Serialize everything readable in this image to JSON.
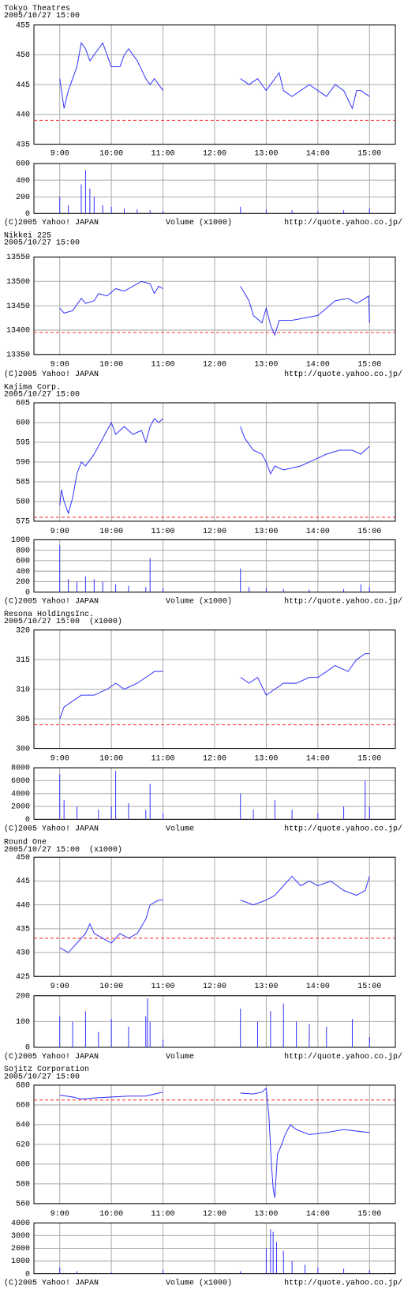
{
  "chart_data": [
    {
      "type": "line",
      "title": "Tokyo Theatres",
      "subtitle": "2005/10/27 15:00",
      "color": "#3333ff",
      "reference_color": "#ff3333",
      "grid": true,
      "x": [
        540,
        545,
        550,
        560,
        565,
        570,
        575,
        585,
        590,
        600,
        610,
        615,
        620,
        630,
        640,
        645,
        650,
        660,
        705,
        750,
        760,
        770,
        780,
        790,
        795,
        800,
        810,
        820,
        830,
        840,
        850,
        860,
        870,
        880,
        885,
        890,
        900
      ],
      "values": [
        446,
        441,
        444,
        448,
        452,
        451,
        449,
        451,
        452,
        448,
        448,
        450,
        451,
        449,
        446,
        445,
        446,
        444,
        null,
        446,
        445,
        446,
        444,
        446,
        447,
        444,
        443,
        444,
        445,
        444,
        443,
        445,
        444,
        441,
        444,
        444,
        443
      ],
      "reference_line": 439,
      "xlim": [
        510,
        930
      ],
      "xticks": [
        {
          "value": 540,
          "label": "9:00"
        },
        {
          "value": 600,
          "label": "10:00"
        },
        {
          "value": 660,
          "label": "11:00"
        },
        {
          "value": 720,
          "label": "12:00"
        },
        {
          "value": 780,
          "label": "13:00"
        },
        {
          "value": 840,
          "label": "14:00"
        },
        {
          "value": 900,
          "label": "15:00"
        }
      ],
      "ylim": [
        435,
        455
      ],
      "yticks": [
        435,
        440,
        445,
        450,
        455
      ],
      "volume": {
        "x": [
          540,
          550,
          565,
          570,
          575,
          580,
          590,
          600,
          615,
          630,
          645,
          660,
          750,
          780,
          810,
          840,
          870,
          900
        ],
        "values": [
          200,
          100,
          350,
          520,
          300,
          200,
          100,
          80,
          60,
          50,
          40,
          30,
          80,
          50,
          40,
          30,
          40,
          60
        ],
        "ylim": [
          0,
          600
        ],
        "yticks": [
          0,
          200,
          400,
          600
        ]
      },
      "footer": {
        "copyright": "(C)2005 Yahoo! JAPAN",
        "volume_label": "Volume (x1000)",
        "url": "http://quote.yahoo.co.jp/"
      }
    },
    {
      "type": "line",
      "title": "Nikkei 225",
      "subtitle": "2005/10/27 15:00",
      "color": "#3333ff",
      "reference_color": "#ff3333",
      "grid": true,
      "x": [
        540,
        545,
        555,
        565,
        570,
        580,
        585,
        595,
        605,
        615,
        625,
        635,
        645,
        650,
        655,
        660,
        705,
        750,
        760,
        765,
        775,
        780,
        785,
        790,
        795,
        810,
        825,
        840,
        850,
        860,
        875,
        885,
        895,
        899,
        900
      ],
      "values": [
        13445,
        13435,
        13440,
        13465,
        13455,
        13460,
        13475,
        13470,
        13485,
        13480,
        13490,
        13500,
        13495,
        13475,
        13490,
        13485,
        null,
        13490,
        13460,
        13430,
        13415,
        13445,
        13410,
        13390,
        13420,
        13420,
        13425,
        13430,
        13445,
        13460,
        13465,
        13455,
        13465,
        13470,
        13415
      ],
      "reference_line": 13395,
      "xlim": [
        510,
        930
      ],
      "xticks": [
        {
          "value": 540,
          "label": "9:00"
        },
        {
          "value": 600,
          "label": "10:00"
        },
        {
          "value": 660,
          "label": "11:00"
        },
        {
          "value": 720,
          "label": "12:00"
        },
        {
          "value": 780,
          "label": "13:00"
        },
        {
          "value": 840,
          "label": "14:00"
        },
        {
          "value": 900,
          "label": "15:00"
        }
      ],
      "ylim": [
        13350,
        13550
      ],
      "yticks": [
        13350,
        13400,
        13450,
        13500,
        13550
      ],
      "footer": {
        "copyright": "(C)2005 Yahoo! JAPAN",
        "url": "http://quote.yahoo.co.jp/"
      }
    },
    {
      "type": "line",
      "title": "Kajima Corp.",
      "subtitle": "2005/10/27 15:00",
      "color": "#3333ff",
      "reference_color": "#ff3333",
      "grid": true,
      "x": [
        540,
        542,
        545,
        550,
        555,
        560,
        565,
        570,
        580,
        590,
        600,
        605,
        615,
        625,
        635,
        640,
        645,
        650,
        655,
        660,
        705,
        750,
        755,
        765,
        775,
        780,
        785,
        790,
        800,
        820,
        830,
        840,
        850,
        865,
        880,
        890,
        900
      ],
      "values": [
        579,
        583,
        580,
        577,
        581,
        587,
        590,
        589,
        592,
        596,
        600,
        597,
        599,
        597,
        598,
        595,
        599,
        601,
        600,
        601,
        null,
        599,
        596,
        593,
        592,
        590,
        587,
        589,
        588,
        589,
        590,
        591,
        592,
        593,
        593,
        592,
        594
      ],
      "reference_line": 576,
      "xlim": [
        510,
        930
      ],
      "xticks": [
        {
          "value": 540,
          "label": "9:00"
        },
        {
          "value": 600,
          "label": "10:00"
        },
        {
          "value": 660,
          "label": "11:00"
        },
        {
          "value": 720,
          "label": "12:00"
        },
        {
          "value": 780,
          "label": "13:00"
        },
        {
          "value": 840,
          "label": "14:00"
        },
        {
          "value": 900,
          "label": "15:00"
        }
      ],
      "ylim": [
        575,
        605
      ],
      "yticks": [
        575,
        580,
        585,
        590,
        595,
        600,
        605
      ],
      "volume": {
        "x": [
          540,
          550,
          560,
          570,
          580,
          590,
          605,
          620,
          640,
          645,
          660,
          750,
          760,
          780,
          800,
          830,
          870,
          890,
          900
        ],
        "values": [
          900,
          250,
          200,
          300,
          250,
          200,
          150,
          120,
          100,
          650,
          80,
          450,
          100,
          80,
          60,
          50,
          60,
          150,
          100
        ],
        "ylim": [
          0,
          1000
        ],
        "yticks": [
          0,
          200,
          400,
          600,
          800,
          1000
        ]
      },
      "footer": {
        "copyright": "(C)2005 Yahoo! JAPAN",
        "volume_label": "Volume (x1000)",
        "url": "http://quote.yahoo.co.jp/"
      }
    },
    {
      "type": "line",
      "title": "Resona HoldingsInc.",
      "subtitle": "2005/10/27 15:00  (x1000)",
      "color": "#3333ff",
      "reference_color": "#ff3333",
      "grid": true,
      "x": [
        540,
        545,
        555,
        565,
        580,
        595,
        605,
        615,
        630,
        640,
        650,
        660,
        705,
        750,
        760,
        770,
        780,
        790,
        800,
        815,
        830,
        840,
        850,
        860,
        875,
        885,
        895,
        900
      ],
      "values": [
        305,
        307,
        308,
        309,
        309,
        310,
        311,
        310,
        311,
        312,
        313,
        313,
        null,
        312,
        311,
        312,
        309,
        310,
        311,
        311,
        312,
        312,
        313,
        314,
        313,
        315,
        316,
        316
      ],
      "reference_line": 304,
      "xlim": [
        510,
        930
      ],
      "xticks": [
        {
          "value": 540,
          "label": "9:00"
        },
        {
          "value": 600,
          "label": "10:00"
        },
        {
          "value": 660,
          "label": "11:00"
        },
        {
          "value": 720,
          "label": "12:00"
        },
        {
          "value": 780,
          "label": "13:00"
        },
        {
          "value": 840,
          "label": "14:00"
        },
        {
          "value": 900,
          "label": "15:00"
        }
      ],
      "ylim": [
        300,
        320
      ],
      "yticks": [
        300,
        305,
        310,
        315,
        320
      ],
      "volume": {
        "x": [
          540,
          545,
          560,
          585,
          600,
          605,
          620,
          640,
          645,
          660,
          750,
          765,
          790,
          810,
          840,
          870,
          895,
          900
        ],
        "values": [
          7000,
          3000,
          2000,
          1500,
          2000,
          7500,
          2500,
          1500,
          5500,
          1000,
          4000,
          1500,
          3000,
          1500,
          1000,
          2000,
          6000,
          2000
        ],
        "ylim": [
          0,
          8000
        ],
        "yticks": [
          0,
          2000,
          4000,
          6000,
          8000
        ]
      },
      "footer": {
        "copyright": "(C)2005 Yahoo! JAPAN",
        "volume_label": "Volume",
        "url": "http://quote.yahoo.co.jp/"
      }
    },
    {
      "type": "line",
      "title": "Round One",
      "subtitle": "2005/10/27 15:00  (x1000)",
      "color": "#3333ff",
      "reference_color": "#ff3333",
      "grid": true,
      "x": [
        540,
        550,
        560,
        570,
        575,
        580,
        590,
        600,
        610,
        620,
        630,
        640,
        645,
        655,
        660,
        705,
        750,
        765,
        780,
        790,
        800,
        810,
        820,
        830,
        840,
        855,
        870,
        885,
        895,
        900
      ],
      "values": [
        431,
        430,
        432,
        434,
        436,
        434,
        433,
        432,
        434,
        433,
        434,
        437,
        440,
        441,
        441,
        null,
        441,
        440,
        441,
        442,
        444,
        446,
        444,
        445,
        444,
        445,
        443,
        442,
        443,
        446
      ],
      "reference_line": 433,
      "xlim": [
        510,
        930
      ],
      "xticks": [
        {
          "value": 540,
          "label": "9:00"
        },
        {
          "value": 600,
          "label": "10:00"
        },
        {
          "value": 660,
          "label": "11:00"
        },
        {
          "value": 720,
          "label": "12:00"
        },
        {
          "value": 780,
          "label": "13:00"
        },
        {
          "value": 840,
          "label": "14:00"
        },
        {
          "value": 900,
          "label": "15:00"
        }
      ],
      "ylim": [
        425,
        450
      ],
      "yticks": [
        425,
        430,
        435,
        440,
        445,
        450
      ],
      "volume": {
        "x": [
          540,
          555,
          570,
          585,
          600,
          620,
          640,
          642,
          645,
          660,
          750,
          770,
          785,
          800,
          815,
          830,
          850,
          880,
          900
        ],
        "values": [
          120,
          100,
          140,
          60,
          110,
          80,
          120,
          190,
          100,
          30,
          150,
          100,
          140,
          170,
          100,
          90,
          80,
          110,
          40
        ],
        "ylim": [
          0,
          200
        ],
        "yticks": [
          0,
          100,
          200
        ]
      },
      "footer": {
        "copyright": "(C)2005 Yahoo! JAPAN",
        "volume_label": "Volume",
        "url": "http://quote.yahoo.co.jp/"
      }
    },
    {
      "type": "line",
      "title": "Sojitz Corporation",
      "subtitle": "2005/10/27 15:00",
      "color": "#3333ff",
      "reference_color": "#ff3333",
      "grid": true,
      "x": [
        540,
        555,
        565,
        580,
        600,
        620,
        640,
        650,
        660,
        705,
        750,
        765,
        775,
        780,
        783,
        786,
        788,
        790,
        793,
        798,
        802,
        808,
        815,
        830,
        850,
        870,
        890,
        900
      ],
      "values": [
        670,
        668,
        666,
        667,
        668,
        669,
        669,
        671,
        673,
        null,
        672,
        671,
        673,
        677,
        650,
        600,
        575,
        566,
        610,
        620,
        630,
        640,
        635,
        630,
        632,
        635,
        633,
        632
      ],
      "reference_line": 665,
      "xlim": [
        510,
        930
      ],
      "xticks": [
        {
          "value": 540,
          "label": "9:00"
        },
        {
          "value": 600,
          "label": "10:00"
        },
        {
          "value": 660,
          "label": "11:00"
        },
        {
          "value": 720,
          "label": "12:00"
        },
        {
          "value": 780,
          "label": "13:00"
        },
        {
          "value": 840,
          "label": "14:00"
        },
        {
          "value": 900,
          "label": "15:00"
        }
      ],
      "ylim": [
        560,
        680
      ],
      "yticks": [
        560,
        580,
        600,
        620,
        640,
        660,
        680
      ],
      "volume": {
        "x": [
          540,
          560,
          600,
          660,
          750,
          780,
          785,
          788,
          792,
          800,
          810,
          825,
          840,
          870,
          900
        ],
        "values": [
          500,
          200,
          100,
          300,
          200,
          2000,
          3500,
          3300,
          2500,
          1800,
          1000,
          700,
          500,
          400,
          300
        ],
        "ylim": [
          0,
          4000
        ],
        "yticks": [
          0,
          1000,
          2000,
          3000,
          4000
        ]
      },
      "footer": {
        "copyright": "(C)2005 Yahoo! JAPAN",
        "volume_label": "Volume (x1000)",
        "url": "http://quote.yahoo.co.jp/"
      }
    }
  ]
}
